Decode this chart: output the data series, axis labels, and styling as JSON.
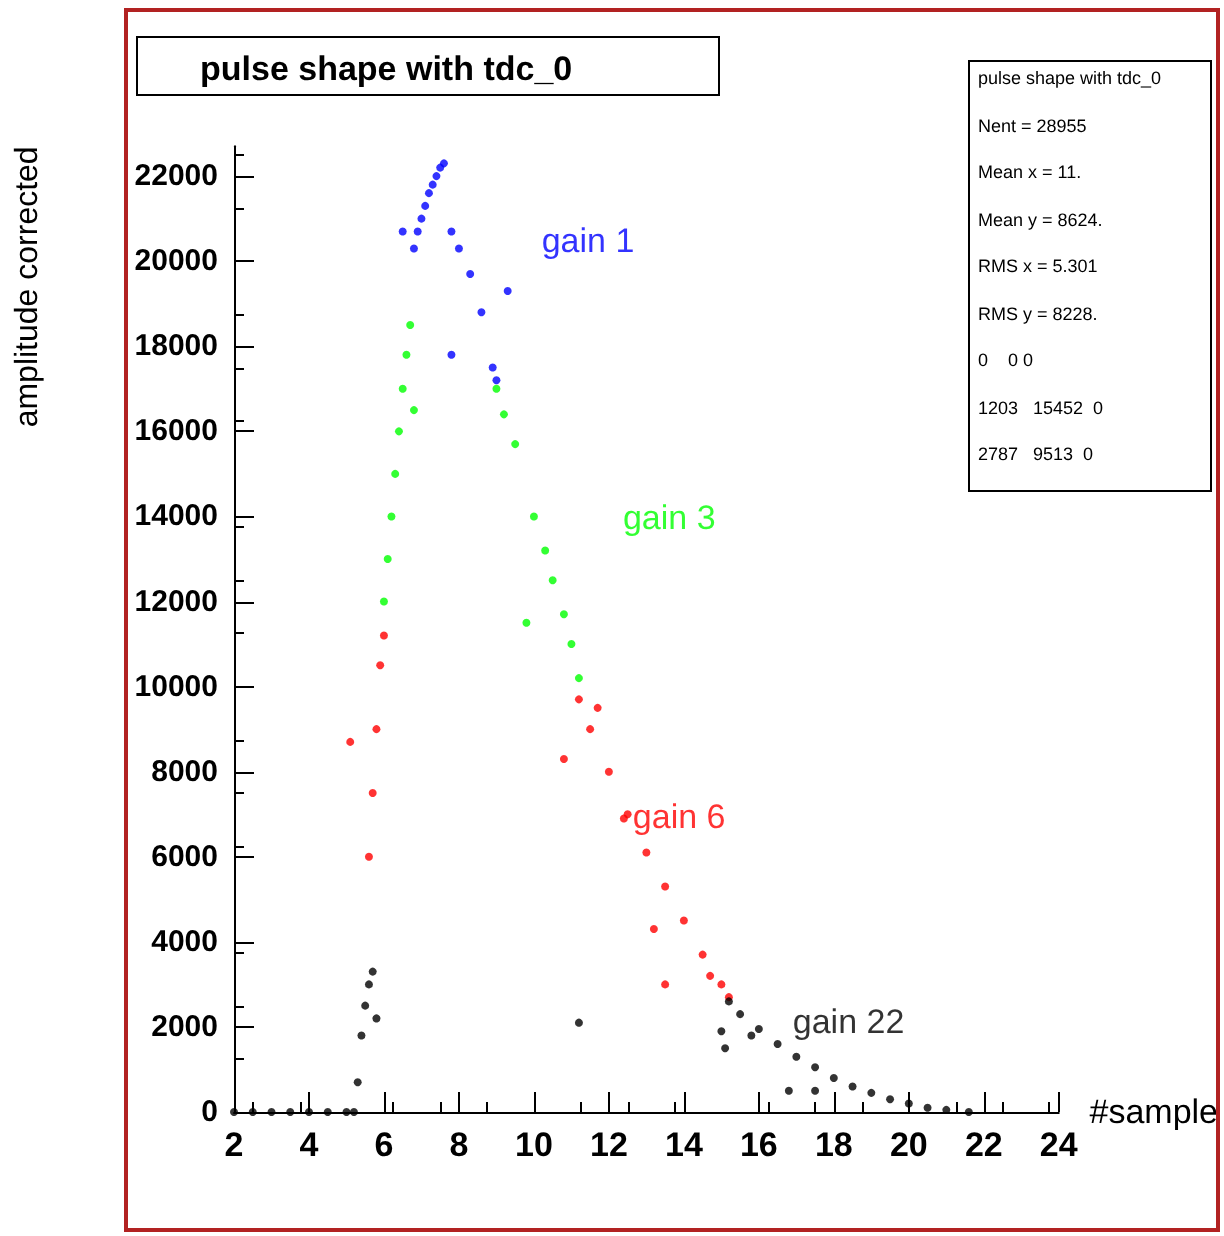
{
  "chart_data": {
    "type": "scatter",
    "title": "pulse shape with tdc_0",
    "xlabel": "#sample",
    "ylabel": "amplitude corrected",
    "xlim": [
      2,
      24
    ],
    "xticks": [
      2,
      4,
      6,
      8,
      10,
      12,
      14,
      16,
      18,
      20,
      22,
      24
    ],
    "ylim": [
      0,
      22700
    ],
    "yticks": [
      0,
      2000,
      4000,
      6000,
      8000,
      10000,
      12000,
      14000,
      16000,
      18000,
      20000,
      22000
    ],
    "grid": false,
    "legend": false,
    "marker": "circle",
    "annotations": [
      "pulse shape with tdc_0",
      "Nent = 28955",
      "Mean x = 11.",
      "Mean y = 8624.",
      "RMS x = 5.301",
      "RMS y = 8228.",
      "0    0 0",
      "1203   15452  0",
      "2787   9513  0"
    ],
    "series": [
      {
        "name": "gain 1",
        "color": "#0000ff",
        "x": [
          6.5,
          6.8,
          6.9,
          7,
          7.1,
          7.2,
          7.3,
          7.4,
          7.5,
          7.6,
          7.8,
          7.8,
          8,
          8.3,
          8.6,
          8.9,
          9,
          9.3
        ],
        "values": [
          20700,
          20300,
          20700,
          21000,
          21300,
          21600,
          21800,
          22000,
          22200,
          22300,
          20700,
          17800,
          20300,
          19700,
          18800,
          17500,
          17200,
          19300
        ]
      },
      {
        "name": "gain 3",
        "color": "#00ff00",
        "x": [
          6,
          6.1,
          6.2,
          6.3,
          6.4,
          6.5,
          6.6,
          6.7,
          6.8,
          9,
          9.2,
          9.5,
          9.8,
          10,
          10.3,
          10.5,
          10.8,
          11,
          11.2
        ],
        "values": [
          12000,
          13000,
          14000,
          15000,
          16000,
          17000,
          17800,
          18500,
          16500,
          17000,
          16400,
          15700,
          11500,
          14000,
          13200,
          12500,
          11700,
          11000,
          10200
        ]
      },
      {
        "name": "gain 6",
        "color": "#ff0000",
        "x": [
          5.1,
          5.6,
          5.7,
          5.8,
          5.9,
          6,
          10.8,
          11.2,
          11.5,
          11.7,
          12,
          12.4,
          12.5,
          13,
          13.2,
          13.5,
          13.5,
          14,
          14.5,
          14.7,
          15,
          15.2
        ],
        "values": [
          8700,
          6000,
          7500,
          9000,
          10500,
          11200,
          8300,
          9700,
          9000,
          9500,
          8000,
          6900,
          7000,
          6100,
          4300,
          5300,
          3000,
          4500,
          3700,
          3200,
          3000,
          2700
        ]
      },
      {
        "name": "gain 22",
        "color": "#000000",
        "x": [
          2,
          2.5,
          3,
          3.5,
          4,
          4.5,
          5,
          5.2,
          5.3,
          5.4,
          5.5,
          5.6,
          5.7,
          5.8,
          11.2,
          15,
          15.1,
          15.2,
          15.5,
          15.8,
          16,
          16.5,
          16.8,
          17,
          17.5,
          17.5,
          18,
          18.5,
          19,
          19.5,
          20,
          20.5,
          21,
          21.6
        ],
        "values": [
          0,
          0,
          0,
          0,
          0,
          0,
          0,
          0,
          700,
          1800,
          2500,
          3000,
          3300,
          2200,
          2100,
          1900,
          1500,
          2600,
          2300,
          1800,
          1950,
          1600,
          500,
          1300,
          1050,
          500,
          800,
          600,
          450,
          300,
          200,
          100,
          50,
          0
        ]
      }
    ]
  }
}
